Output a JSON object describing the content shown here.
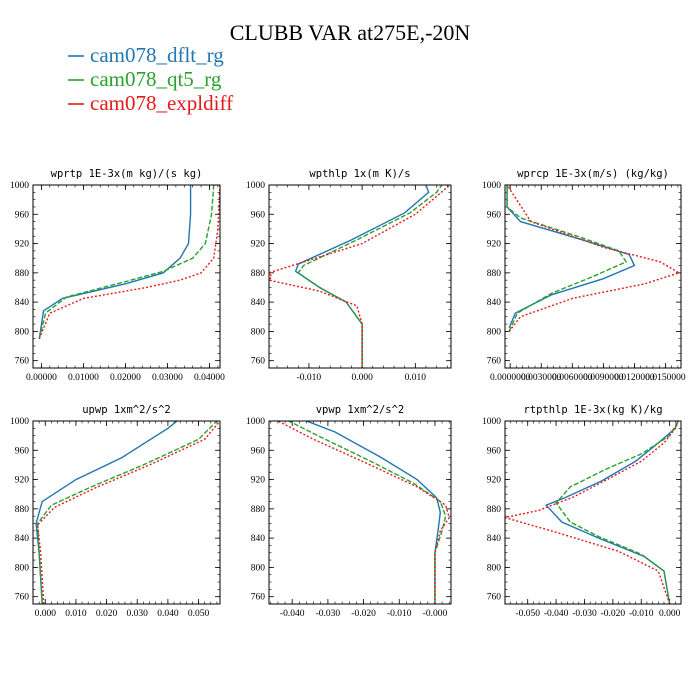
{
  "figure": {
    "title": "CLUBB VAR at275E,-20N"
  },
  "chart_data": [
    {
      "type": "line",
      "title": "wprtp  1E-3x(m kg)/(s kg)",
      "xlim": [
        -0.002,
        0.0425
      ],
      "ylim": [
        1000,
        750
      ],
      "xticks": [
        "0.00000",
        "0.01000",
        "0.02000",
        "0.03000",
        "0.04000"
      ],
      "xtick_values": [
        0,
        0.01,
        0.02,
        0.03,
        0.04
      ],
      "yticks": [
        760,
        800,
        840,
        880,
        920,
        960,
        1000
      ],
      "series": [
        {
          "name": "cam078_dflt_rg",
          "color": "#1f77b4",
          "dash": "",
          "x": [
            -0.0005,
            0.0005,
            0.005,
            0.02,
            0.029,
            0.033,
            0.035,
            0.0355,
            0.0355
          ],
          "y": [
            790,
            828,
            845,
            865,
            880,
            900,
            920,
            960,
            1000
          ]
        },
        {
          "name": "cam078_qt5_rg",
          "color": "#2ca02c",
          "dash": "5,2",
          "x": [
            -0.0005,
            0.001,
            0.006,
            0.02,
            0.029,
            0.036,
            0.039,
            0.0405,
            0.041
          ],
          "y": [
            790,
            825,
            847,
            868,
            882,
            900,
            920,
            960,
            1000
          ]
        },
        {
          "name": "cam078_expldiff",
          "color": "#e41a1c",
          "dash": "2,2",
          "x": [
            -0.0005,
            0.002,
            0.01,
            0.025,
            0.033,
            0.038,
            0.041,
            0.042,
            0.0425
          ],
          "y": [
            790,
            825,
            845,
            860,
            870,
            880,
            900,
            940,
            1000
          ]
        }
      ]
    },
    {
      "type": "line",
      "title": "wpthlp  1x(m K)/s",
      "xlim": [
        -0.0175,
        0.0167
      ],
      "ylim": [
        1000,
        750
      ],
      "xticks": [
        "-0.010",
        "0.000",
        "0.010"
      ],
      "xtick_values": [
        -0.01,
        0,
        0.01
      ],
      "yticks": [
        760,
        800,
        840,
        880,
        920,
        960,
        1000
      ],
      "series": [
        {
          "name": "cam078_dflt_rg",
          "color": "#1f77b4",
          "dash": "",
          "x": [
            0.0,
            0.0,
            -0.003,
            -0.008,
            -0.0125,
            -0.012,
            -0.002,
            0.008,
            0.0125,
            0.012
          ],
          "y": [
            750,
            810,
            840,
            860,
            882,
            892,
            925,
            962,
            990,
            1000
          ]
        },
        {
          "name": "cam078_qt5_rg",
          "color": "#2ca02c",
          "dash": "5,2",
          "x": [
            0.0,
            0.0,
            -0.003,
            -0.008,
            -0.012,
            -0.011,
            -0.001,
            0.009,
            0.014,
            0.015
          ],
          "y": [
            750,
            810,
            840,
            860,
            880,
            890,
            925,
            962,
            990,
            1000
          ]
        },
        {
          "name": "cam078_expldiff",
          "color": "#e41a1c",
          "dash": "2,2",
          "x": [
            0.0,
            0.0,
            -0.001,
            -0.008,
            -0.0175,
            -0.017,
            -0.0175,
            0.0,
            0.01,
            0.0165
          ],
          "y": [
            750,
            810,
            835,
            855,
            870,
            875,
            880,
            920,
            960,
            1000
          ]
        }
      ]
    },
    {
      "type": "line",
      "title": "wprcp  1E-3x(m/s) (kg/kg)",
      "xlim": [
        -0.0005,
        0.0165
      ],
      "ylim": [
        1000,
        750
      ],
      "xticks": [
        "0.0000000",
        "0.0030000",
        "0.0060000",
        "0.0090000",
        "0.0120000",
        "0.0150000"
      ],
      "xtick_values": [
        0,
        0.003,
        0.006,
        0.009,
        0.012,
        0.015
      ],
      "yticks": [
        760,
        800,
        840,
        880,
        920,
        960,
        1000
      ],
      "series": [
        {
          "name": "cam078_dflt_rg",
          "color": "#1f77b4",
          "dash": "",
          "x": [
            -0.0001,
            0.0005,
            0.004,
            0.009,
            0.012,
            0.0115,
            0.007,
            0.001,
            -0.0003,
            -0.0003
          ],
          "y": [
            805,
            825,
            850,
            872,
            890,
            905,
            925,
            950,
            970,
            1000
          ]
        },
        {
          "name": "cam078_qt5_rg",
          "color": "#2ca02c",
          "dash": "5,2",
          "x": [
            -0.0001,
            0.0007,
            0.004,
            0.008,
            0.0112,
            0.0105,
            0.0065,
            0.001,
            -0.0003,
            -0.0003
          ],
          "y": [
            800,
            825,
            852,
            875,
            895,
            910,
            930,
            955,
            970,
            1000
          ]
        },
        {
          "name": "cam078_expldiff",
          "color": "#e41a1c",
          "dash": "2,2",
          "x": [
            -0.0001,
            0.001,
            0.006,
            0.013,
            0.0163,
            0.0145,
            0.009,
            0.002,
            -0.0003
          ],
          "y": [
            800,
            820,
            845,
            865,
            880,
            895,
            915,
            950,
            1000
          ]
        }
      ]
    },
    {
      "type": "line",
      "title": "upwp  1xm^2/s^2",
      "xlim": [
        -0.004,
        0.057
      ],
      "ylim": [
        1000,
        750
      ],
      "xticks": [
        "0.000",
        "0.010",
        "0.020",
        "0.030",
        "0.040",
        "0.050"
      ],
      "xtick_values": [
        0,
        0.01,
        0.02,
        0.03,
        0.04,
        0.05
      ],
      "yticks": [
        760,
        800,
        840,
        880,
        920,
        960,
        1000
      ],
      "series": [
        {
          "name": "cam078_dflt_rg",
          "color": "#1f77b4",
          "dash": "",
          "x": [
            -0.001,
            -0.002,
            -0.003,
            -0.001,
            0.01,
            0.025,
            0.04,
            0.043
          ],
          "y": [
            750,
            820,
            860,
            890,
            920,
            950,
            990,
            1000
          ]
        },
        {
          "name": "cam078_qt5_rg",
          "color": "#2ca02c",
          "dash": "5,2",
          "x": [
            -0.001,
            -0.002,
            -0.0025,
            0.002,
            0.015,
            0.032,
            0.05,
            0.056
          ],
          "y": [
            750,
            820,
            860,
            885,
            910,
            940,
            975,
            1000
          ]
        },
        {
          "name": "cam078_expldiff",
          "color": "#e41a1c",
          "dash": "2,2",
          "x": [
            -0.0005,
            -0.0015,
            -0.0025,
            0.003,
            0.016,
            0.034,
            0.052,
            0.057
          ],
          "y": [
            750,
            820,
            858,
            882,
            908,
            940,
            975,
            1000
          ]
        }
      ]
    },
    {
      "type": "line",
      "title": "vpwp  1xm^2/s^2",
      "xlim": [
        -0.0465,
        0.0045
      ],
      "ylim": [
        1000,
        750
      ],
      "xticks": [
        "-0.040",
        "-0.030",
        "-0.020",
        "-0.010",
        "-0.000"
      ],
      "xtick_values": [
        -0.04,
        -0.03,
        -0.02,
        -0.01,
        0
      ],
      "yticks": [
        760,
        800,
        840,
        880,
        920,
        960,
        1000
      ],
      "series": [
        {
          "name": "cam078_dflt_rg",
          "color": "#1f77b4",
          "dash": "",
          "x": [
            0.0,
            0.0,
            0.001,
            0.0015,
            0.0005,
            -0.005,
            -0.015,
            -0.028,
            -0.036
          ],
          "y": [
            750,
            820,
            855,
            875,
            895,
            920,
            950,
            985,
            1000
          ]
        },
        {
          "name": "cam078_qt5_rg",
          "color": "#2ca02c",
          "dash": "5,2",
          "x": [
            0.0,
            0.0,
            0.002,
            0.003,
            0.0015,
            -0.006,
            -0.018,
            -0.032,
            -0.041
          ],
          "y": [
            750,
            820,
            850,
            870,
            890,
            915,
            945,
            978,
            1000
          ]
        },
        {
          "name": "cam078_expldiff",
          "color": "#e41a1c",
          "dash": "2,2",
          "x": [
            0.0,
            0.0,
            0.0015,
            0.004,
            0.003,
            -0.005,
            -0.019,
            -0.034,
            -0.044
          ],
          "y": [
            750,
            820,
            850,
            868,
            885,
            910,
            942,
            975,
            1000
          ]
        }
      ]
    },
    {
      "type": "line",
      "title": "rtpthlp  1E-3x(kg K)/kg",
      "xlim": [
        -0.058,
        0.004
      ],
      "ylim": [
        1000,
        750
      ],
      "xticks": [
        "-0.050",
        "-0.040",
        "-0.030",
        "-0.020",
        "-0.010",
        "0.000"
      ],
      "xtick_values": [
        -0.05,
        -0.04,
        -0.03,
        -0.02,
        -0.01,
        0
      ],
      "yticks": [
        760,
        800,
        840,
        880,
        920,
        960,
        1000
      ],
      "series": [
        {
          "name": "cam078_dflt_rg",
          "color": "#1f77b4",
          "dash": "",
          "x": [
            0.0,
            -0.002,
            -0.009,
            -0.025,
            -0.038,
            -0.0435,
            -0.037,
            -0.024,
            -0.012,
            -0.004,
            0.002,
            0.003
          ],
          "y": [
            750,
            795,
            815,
            840,
            862,
            885,
            895,
            918,
            945,
            970,
            990,
            1000
          ]
        },
        {
          "name": "cam078_qt5_rg",
          "color": "#2ca02c",
          "dash": "5,2",
          "x": [
            0.0,
            -0.002,
            -0.01,
            -0.025,
            -0.035,
            -0.04,
            -0.035,
            -0.022,
            -0.01,
            0.0,
            0.003
          ],
          "y": [
            750,
            795,
            818,
            842,
            862,
            888,
            910,
            935,
            955,
            980,
            1000
          ]
        },
        {
          "name": "cam078_expldiff",
          "color": "#e41a1c",
          "dash": "2,2",
          "x": [
            0.0,
            -0.004,
            -0.018,
            -0.04,
            -0.058,
            -0.046,
            -0.034,
            -0.022,
            -0.01,
            -0.002,
            0.002,
            0.003
          ],
          "y": [
            750,
            795,
            822,
            848,
            868,
            878,
            896,
            920,
            945,
            970,
            990,
            1000
          ]
        }
      ]
    }
  ],
  "legend": [
    {
      "label": "cam078_dflt_rg",
      "color": "#1f77b4"
    },
    {
      "label": "cam078_qt5_rg",
      "color": "#2ca02c"
    },
    {
      "label": "cam078_expldiff",
      "color": "#e41a1c"
    }
  ]
}
